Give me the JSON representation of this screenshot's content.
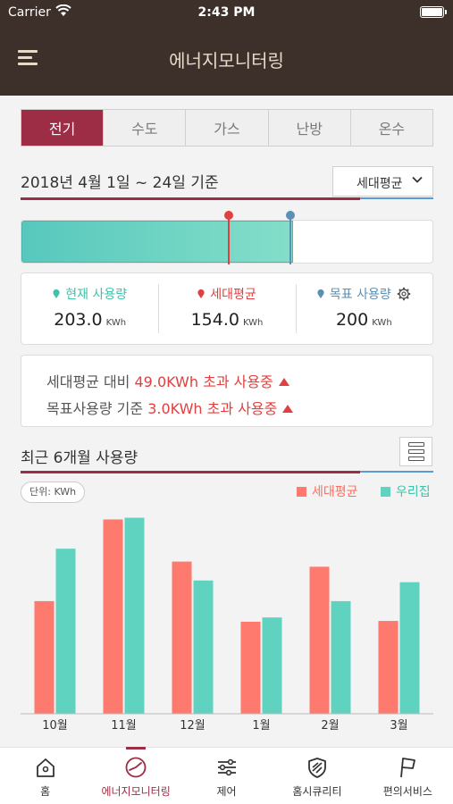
{
  "status_bar": {
    "carrier": "Carrier",
    "time": "2:43 PM"
  },
  "app_bar": {
    "title": "에너지모니터링"
  },
  "tabs": [
    {
      "label": "전기",
      "active": true
    },
    {
      "label": "수도",
      "active": false
    },
    {
      "label": "가스",
      "active": false
    },
    {
      "label": "난방",
      "active": false
    },
    {
      "label": "온수",
      "active": false
    }
  ],
  "period": {
    "text": "2018년 4월 1일 ~ 24일 기준",
    "filter": "세대평균"
  },
  "usage_bar": {
    "max_kwh": 307,
    "current_kwh": 203.0,
    "average_kwh": 154.0,
    "target_kwh": 200
  },
  "stats": [
    {
      "label": "현재 사용량",
      "value": "203.0",
      "unit": "KWh",
      "color": "#3ec3a8"
    },
    {
      "label": "세대평균",
      "value": "154.0",
      "unit": "KWh",
      "color": "#e0403f"
    },
    {
      "label": "목표 사용량",
      "value": "200",
      "unit": "KWh",
      "color": "#5b8fb3"
    }
  ],
  "comparison": {
    "line1": {
      "prefix": "세대평균 대비 ",
      "value": "49.0KWh 초과 사용중"
    },
    "line2": {
      "prefix": "목표사용량 기준 ",
      "value": "3.0KWh 초과 사용중"
    }
  },
  "recent": {
    "title": "최근 6개월 사용량",
    "unit": "단위: KWh"
  },
  "colors": {
    "accent": "#9c2d45",
    "header": "#3d302a",
    "average": "#ff7a6e",
    "ours": "#5fd3bf",
    "teal_line": "#5b9bd5"
  },
  "chart_data": {
    "type": "bar",
    "categories": [
      "10월",
      "11월",
      "12월",
      "1월",
      "2월",
      "3월"
    ],
    "series": [
      {
        "name": "세대평균",
        "color": "#ff7a6e",
        "values": [
          131,
          226,
          177,
          107,
          171,
          108
        ]
      },
      {
        "name": "우리집",
        "color": "#5fd3bf",
        "values": [
          192,
          228,
          155,
          112,
          131,
          153
        ]
      }
    ],
    "ylim": [
      0,
      240
    ],
    "legend": "top-right",
    "grid": false
  },
  "bottom_nav": [
    {
      "label": "홈",
      "icon": "home-icon",
      "active": false
    },
    {
      "label": "에너지모니터링",
      "icon": "gauge-icon",
      "active": true
    },
    {
      "label": "제어",
      "icon": "sliders-icon",
      "active": false
    },
    {
      "label": "홈시큐리티",
      "icon": "shield-icon",
      "active": false
    },
    {
      "label": "편의서비스",
      "icon": "flag-icon",
      "active": false
    }
  ]
}
